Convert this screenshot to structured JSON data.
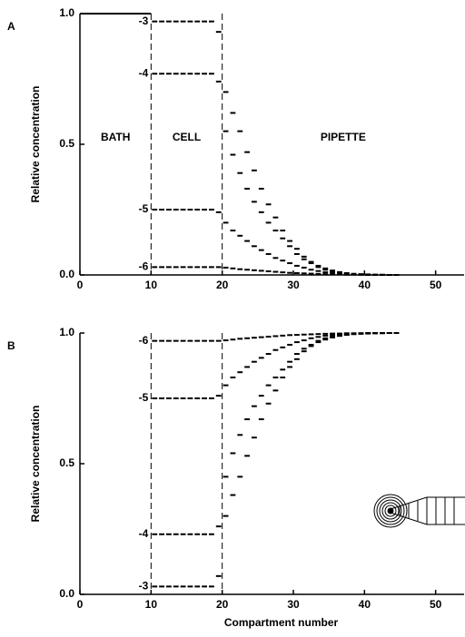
{
  "chart_data": [
    {
      "type": "line",
      "panel": "A",
      "ylabel": "Relative concentration",
      "xlim": [
        0,
        54
      ],
      "ylim": [
        0,
        1
      ],
      "xticks": [
        0,
        10,
        20,
        30,
        40,
        50
      ],
      "yticks": [
        {
          "value": 0,
          "label": "0.0"
        },
        0.5,
        {
          "value": 1,
          "label": "1.0"
        }
      ],
      "dividers": [
        10,
        20
      ],
      "region_labels": [
        "BATH",
        "CELL",
        "PIPETTE"
      ],
      "bath": {
        "x": [
          0,
          10
        ],
        "values": [
          1,
          1
        ]
      },
      "x": [
        10,
        11,
        12,
        13,
        14,
        15,
        16,
        17,
        18,
        19,
        20,
        21,
        22,
        23,
        24,
        25,
        26,
        27,
        28,
        29,
        30,
        31,
        32,
        33,
        34,
        35,
        36,
        37,
        38,
        39,
        40,
        41,
        42,
        43,
        44
      ],
      "series": [
        {
          "name": "-3",
          "color": "#000000",
          "values": [
            0.97,
            0.97,
            0.97,
            0.97,
            0.97,
            0.97,
            0.97,
            0.97,
            0.97,
            0.93,
            0.7,
            0.62,
            0.55,
            0.47,
            0.4,
            0.33,
            0.27,
            0.22,
            0.17,
            0.13,
            0.1,
            0.07,
            0.05,
            0.035,
            0.025,
            0.017,
            0.011,
            0.007,
            0.004,
            0.003,
            0.002,
            0.001,
            0.001,
            0,
            0
          ]
        },
        {
          "name": "-4",
          "color": "#000000",
          "values": [
            0.77,
            0.77,
            0.77,
            0.77,
            0.77,
            0.77,
            0.77,
            0.77,
            0.77,
            0.74,
            0.55,
            0.46,
            0.39,
            0.33,
            0.28,
            0.24,
            0.2,
            0.17,
            0.14,
            0.11,
            0.08,
            0.06,
            0.045,
            0.03,
            0.02,
            0.014,
            0.009,
            0.006,
            0.004,
            0.002,
            0.001,
            0.001,
            0,
            0,
            0
          ]
        },
        {
          "name": "-5",
          "color": "#000000",
          "values": [
            0.25,
            0.25,
            0.25,
            0.25,
            0.25,
            0.25,
            0.25,
            0.25,
            0.25,
            0.24,
            0.2,
            0.17,
            0.15,
            0.13,
            0.11,
            0.095,
            0.08,
            0.065,
            0.055,
            0.045,
            0.035,
            0.028,
            0.02,
            0.015,
            0.01,
            0.007,
            0.005,
            0.003,
            0.002,
            0.001,
            0,
            0,
            0,
            0,
            0
          ]
        },
        {
          "name": "-6",
          "color": "#000000",
          "values": [
            0.03,
            0.03,
            0.03,
            0.03,
            0.03,
            0.03,
            0.03,
            0.03,
            0.03,
            0.03,
            0.028,
            0.025,
            0.022,
            0.02,
            0.018,
            0.016,
            0.014,
            0.012,
            0.01,
            0.008,
            0.007,
            0.006,
            0.005,
            0.004,
            0.003,
            0.002,
            0.002,
            0.001,
            0.001,
            0.001,
            0,
            0,
            0,
            0,
            0
          ]
        }
      ]
    },
    {
      "type": "line",
      "panel": "B",
      "ylabel": "Relative concentration",
      "xlabel": "Compartment number",
      "xlim": [
        0,
        54
      ],
      "ylim": [
        0,
        1
      ],
      "xticks": [
        0,
        10,
        20,
        30,
        40,
        50
      ],
      "yticks": [
        {
          "value": 0,
          "label": "0.0"
        },
        0.5,
        {
          "value": 1,
          "label": "1.0"
        }
      ],
      "dividers": [
        10,
        20
      ],
      "x": [
        10,
        11,
        12,
        13,
        14,
        15,
        16,
        17,
        18,
        19,
        20,
        21,
        22,
        23,
        24,
        25,
        26,
        27,
        28,
        29,
        30,
        31,
        32,
        33,
        34,
        35,
        36,
        37,
        38,
        39,
        40,
        41,
        42,
        43,
        44
      ],
      "series": [
        {
          "name": "-6",
          "color": "#000000",
          "values": [
            0.97,
            0.97,
            0.97,
            0.97,
            0.97,
            0.97,
            0.97,
            0.97,
            0.97,
            0.97,
            0.972,
            0.975,
            0.978,
            0.98,
            0.982,
            0.984,
            0.986,
            0.988,
            0.99,
            0.992,
            0.993,
            0.994,
            0.995,
            0.996,
            0.997,
            0.998,
            0.998,
            0.999,
            0.999,
            0.999,
            1,
            1,
            1,
            1,
            1
          ]
        },
        {
          "name": "-5",
          "color": "#000000",
          "values": [
            0.75,
            0.75,
            0.75,
            0.75,
            0.75,
            0.75,
            0.75,
            0.75,
            0.75,
            0.76,
            0.8,
            0.83,
            0.85,
            0.87,
            0.89,
            0.905,
            0.92,
            0.935,
            0.945,
            0.955,
            0.965,
            0.972,
            0.98,
            0.985,
            0.99,
            0.993,
            0.995,
            0.997,
            0.998,
            0.999,
            1,
            1,
            1,
            1,
            1
          ]
        },
        {
          "name": "-4",
          "color": "#000000",
          "values": [
            0.23,
            0.23,
            0.23,
            0.23,
            0.23,
            0.23,
            0.23,
            0.23,
            0.23,
            0.26,
            0.45,
            0.54,
            0.61,
            0.67,
            0.72,
            0.76,
            0.8,
            0.83,
            0.86,
            0.89,
            0.92,
            0.94,
            0.955,
            0.97,
            0.98,
            0.986,
            0.991,
            0.994,
            0.996,
            0.998,
            0.999,
            0.999,
            1,
            1,
            1
          ]
        },
        {
          "name": "-3",
          "color": "#000000",
          "values": [
            0.03,
            0.03,
            0.03,
            0.03,
            0.03,
            0.03,
            0.03,
            0.03,
            0.03,
            0.07,
            0.3,
            0.38,
            0.45,
            0.53,
            0.6,
            0.67,
            0.73,
            0.78,
            0.83,
            0.87,
            0.9,
            0.93,
            0.95,
            0.965,
            0.975,
            0.983,
            0.989,
            0.993,
            0.996,
            0.997,
            0.998,
            0.999,
            0.999,
            1,
            1
          ]
        }
      ]
    }
  ]
}
